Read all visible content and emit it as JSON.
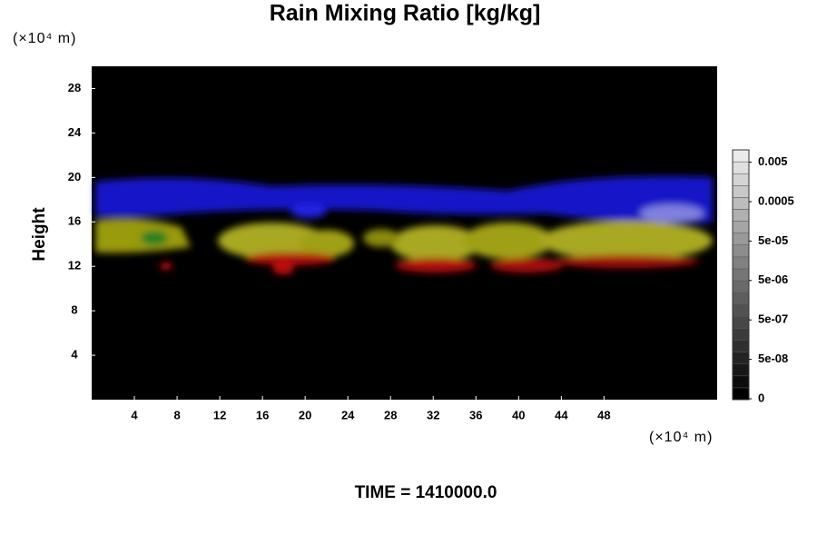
{
  "chart_data": {
    "type": "volume",
    "title": "Rain Mixing Ratio [kg/kg]",
    "y_label": "Height",
    "y_unit": "(×10⁴ m)",
    "x_unit": "(×10⁴ m)",
    "time_label": "TIME = 1410000.0",
    "xlim": [
      0,
      58.6
    ],
    "xticks": [
      4,
      8,
      12,
      16,
      20,
      24,
      28,
      32,
      36,
      40,
      44,
      48
    ],
    "ylim": [
      0,
      30
    ],
    "yticks": [
      4,
      8,
      12,
      16,
      20,
      24,
      28
    ],
    "colorbar_ticks": [
      0,
      {
        "value": 5e-08,
        "label": "5e-08"
      },
      {
        "value": 5e-07,
        "label": "5e-07"
      },
      {
        "value": 5e-06,
        "label": "5e-06"
      },
      {
        "value": 5e-05,
        "label": "5e-05"
      },
      0.0005,
      0.005
    ]
  }
}
